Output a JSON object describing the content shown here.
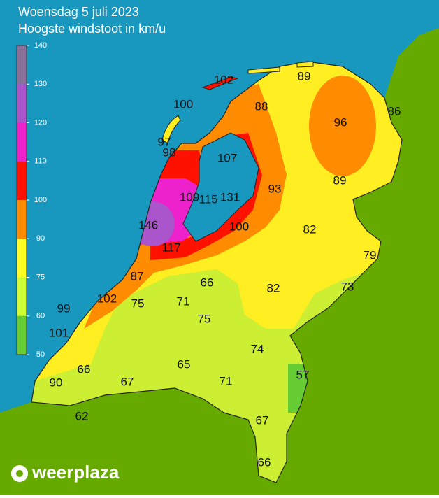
{
  "header": {
    "title": "Woensdag 5 juli 2023",
    "subtitle": "Hoogste windstoot in km/u"
  },
  "legend": {
    "ticks": [
      50,
      60,
      75,
      90,
      100,
      110,
      120,
      130,
      140
    ],
    "colors": [
      "#66cc33",
      "#ccff33",
      "#ffff22",
      "#ff8c00",
      "#ff1100",
      "#ee22cc",
      "#aa55cc",
      "#887099"
    ]
  },
  "values": [
    102,
    100,
    89,
    88,
    86,
    96,
    97,
    98,
    107,
    93,
    89,
    109,
    115,
    131,
    146,
    100,
    82,
    117,
    79,
    87,
    66,
    82,
    73,
    102,
    75,
    71,
    99,
    75,
    101,
    74,
    65,
    66,
    57,
    90,
    67,
    71,
    62,
    67,
    66
  ],
  "brand": "weerplaza"
}
